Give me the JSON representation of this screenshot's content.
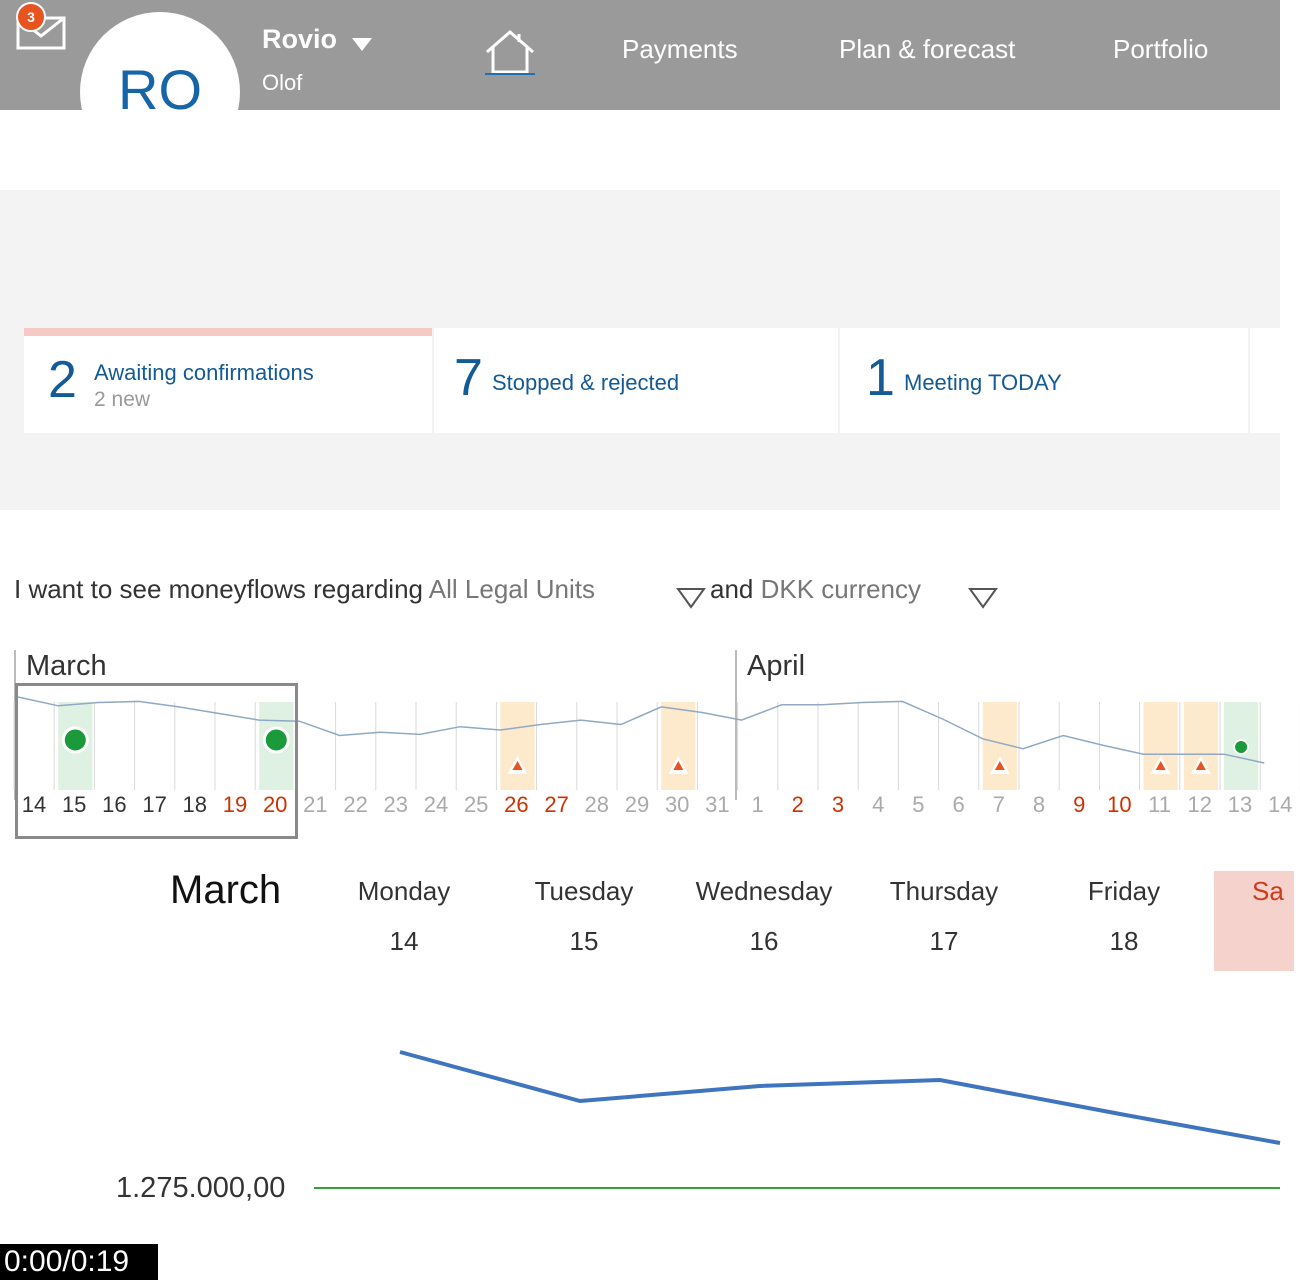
{
  "header": {
    "mail_badge": "3",
    "avatar_initials": "RO",
    "company": "Rovio",
    "user": "Olof",
    "nav": [
      "Payments",
      "Plan & forecast",
      "Portfolio"
    ],
    "icons": [
      "mail-icon",
      "chevron-down-icon",
      "home-icon"
    ]
  },
  "summary": [
    {
      "count": "7",
      "label": "Stopped & rejected"
    },
    {
      "count": "1",
      "label": "Meeting TODAY"
    }
  ],
  "awaiting": {
    "count": "2",
    "label": "Awaiting confirmations",
    "sub": "2 new"
  },
  "filter": {
    "prefix": "I want to see moneyflows regarding",
    "legal_units": "All Legal Units",
    "middle": "and",
    "currency": "DKK currency"
  },
  "timeline": {
    "months": [
      "March",
      "April"
    ],
    "days": [
      {
        "d": "14",
        "state": "normal"
      },
      {
        "d": "15",
        "state": "normal"
      },
      {
        "d": "16",
        "state": "normal"
      },
      {
        "d": "17",
        "state": "normal"
      },
      {
        "d": "18",
        "state": "normal"
      },
      {
        "d": "19",
        "state": "weekend"
      },
      {
        "d": "20",
        "state": "weekend"
      },
      {
        "d": "21",
        "state": "faded"
      },
      {
        "d": "22",
        "state": "faded"
      },
      {
        "d": "23",
        "state": "faded"
      },
      {
        "d": "24",
        "state": "faded"
      },
      {
        "d": "25",
        "state": "faded"
      },
      {
        "d": "26",
        "state": "weekend"
      },
      {
        "d": "27",
        "state": "weekend"
      },
      {
        "d": "28",
        "state": "faded"
      },
      {
        "d": "29",
        "state": "faded"
      },
      {
        "d": "30",
        "state": "faded"
      },
      {
        "d": "31",
        "state": "faded"
      },
      {
        "d": "1",
        "state": "faded"
      },
      {
        "d": "2",
        "state": "weekend"
      },
      {
        "d": "3",
        "state": "weekend"
      },
      {
        "d": "4",
        "state": "faded"
      },
      {
        "d": "5",
        "state": "faded"
      },
      {
        "d": "6",
        "state": "faded"
      },
      {
        "d": "7",
        "state": "faded"
      },
      {
        "d": "8",
        "state": "faded"
      },
      {
        "d": "9",
        "state": "weekend"
      },
      {
        "d": "10",
        "state": "weekend"
      },
      {
        "d": "11",
        "state": "faded"
      },
      {
        "d": "12",
        "state": "faded"
      },
      {
        "d": "13",
        "state": "faded"
      },
      {
        "d": "14",
        "state": "faded"
      }
    ],
    "markers": [
      {
        "day_index": 1,
        "kind": "confirmed"
      },
      {
        "day_index": 6,
        "kind": "confirmed"
      },
      {
        "day_index": 12,
        "kind": "warning"
      },
      {
        "day_index": 16,
        "kind": "warning"
      },
      {
        "day_index": 24,
        "kind": "warning"
      },
      {
        "day_index": 28,
        "kind": "warning"
      },
      {
        "day_index": 29,
        "kind": "warning"
      },
      {
        "day_index": 30,
        "kind": "confirmed-small"
      }
    ],
    "colors": {
      "confirmed": "#1a9a3a",
      "confirmed_bg": "#dff1e2",
      "warning": "#e8541f",
      "warning_bg": "#fde9cc",
      "weekend_text": "#cc3300",
      "faded_text": "#aaaaaa",
      "line": "#8fa9c4"
    }
  },
  "week": {
    "month": "March",
    "days": [
      {
        "name": "Monday",
        "date": "14"
      },
      {
        "name": "Tuesday",
        "date": "15"
      },
      {
        "name": "Wednesday",
        "date": "16"
      },
      {
        "name": "Thursday",
        "date": "17"
      },
      {
        "name": "Friday",
        "date": "18"
      }
    ],
    "next_day_partial": "Sa",
    "baseline_label": "1.275.000,00",
    "line_color": "#3f74bf",
    "baseline_color": "#3a9e3a"
  },
  "video_time": "0:00/0:19"
}
